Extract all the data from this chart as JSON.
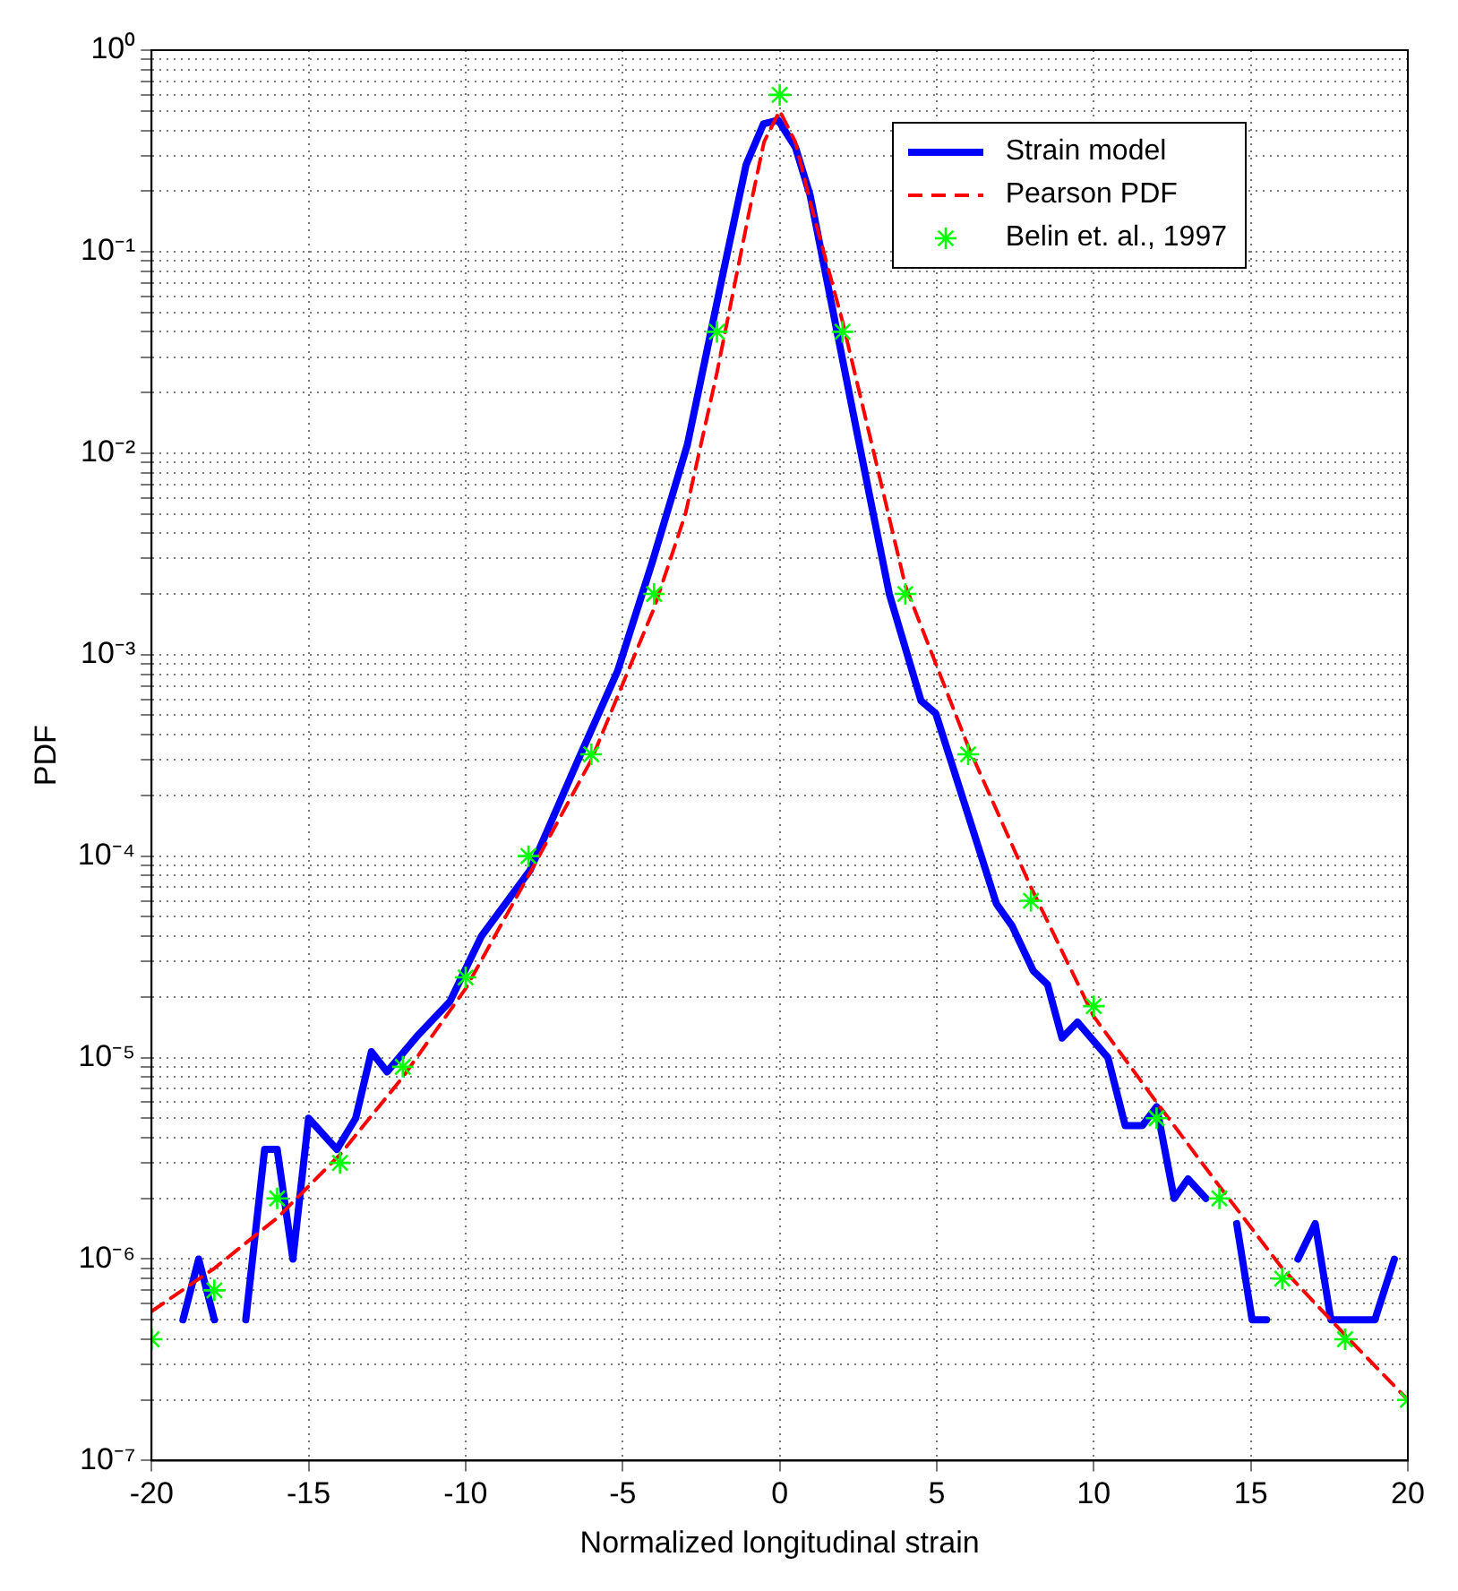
{
  "chart_data": {
    "type": "line",
    "xlabel": "Normalized longitudinal strain",
    "ylabel": "PDF",
    "log": "y",
    "grid": true,
    "legend": "top right",
    "xlim": [
      -20,
      20
    ],
    "xticks": [
      -20,
      -15,
      -10,
      -5,
      0,
      5,
      10,
      15,
      20
    ],
    "ylim": [
      1e-07,
      1
    ],
    "yticks": [
      {
        "value": 1e-07,
        "label": "10⁻⁷"
      },
      {
        "value": 1e-06,
        "label": "10⁻⁶"
      },
      {
        "value": 1e-05,
        "label": "10⁻⁵"
      },
      {
        "value": 0.0001,
        "label": "10⁻⁴"
      },
      {
        "value": 0.001,
        "label": "10⁻³"
      },
      {
        "value": 0.01,
        "label": "10⁻²"
      },
      {
        "value": 0.1,
        "label": "10⁻¹"
      },
      {
        "value": 1,
        "label": "10⁰"
      }
    ],
    "series": [
      {
        "name": "Strain model",
        "type": "line",
        "color": "#0000ff",
        "line_style": "solid",
        "marker": "none",
        "x": [
          -19,
          -18.5,
          -18,
          -17.5,
          -17,
          -16.4,
          -16,
          -15.5,
          -15,
          -14.1,
          -13.5,
          -13,
          -12.5,
          -11.5,
          -10.5,
          -9.5,
          -7.95,
          -6.46,
          -5.16,
          -4.05,
          -2.94,
          -1.82,
          -1.07,
          -0.52,
          -0.05,
          0.5,
          0.97,
          1.9,
          2.65,
          3.49,
          4.5,
          4.97,
          6,
          6.9,
          7.4,
          8.07,
          8.53,
          8.99,
          9.48,
          10.45,
          11,
          11.55,
          12,
          12.56,
          13,
          13.57,
          14,
          14.55,
          15.04,
          15.5,
          16,
          16.5,
          17.05,
          17.55,
          18.95,
          19.57
        ],
        "values": [
          5e-07,
          1e-06,
          5e-07,
          null,
          5e-07,
          3.5e-06,
          3.5e-06,
          1e-06,
          5e-06,
          3.5e-06,
          5e-06,
          1.07e-05,
          8.5e-06,
          1.3e-05,
          1.9e-05,
          4e-05,
          8.5e-05,
          0.00029,
          0.00083,
          0.0029,
          0.011,
          0.076,
          0.27,
          0.43,
          0.45,
          0.33,
          0.19,
          0.035,
          0.009,
          0.002,
          0.00059,
          0.00051,
          0.00016,
          5.8e-05,
          4.5e-05,
          2.7e-05,
          2.3e-05,
          1.25e-05,
          1.5e-05,
          1e-05,
          4.6e-06,
          4.6e-06,
          5.7e-06,
          2e-06,
          2.5e-06,
          2e-06,
          null,
          1.5e-06,
          5e-07,
          5e-07,
          null,
          1e-06,
          1.5e-06,
          5e-07,
          5e-07,
          1e-06
        ]
      },
      {
        "name": "Pearson PDF",
        "type": "line",
        "color": "#ff0000",
        "line_style": "dashed",
        "marker": "none",
        "x": [
          -20,
          -18,
          -16,
          -14,
          -12,
          -10,
          -8,
          -6,
          -4,
          -3,
          -2,
          -1,
          -0.5,
          0,
          0.5,
          1,
          2,
          3,
          4,
          6,
          8,
          10,
          12,
          14,
          16,
          18,
          20
        ],
        "values": [
          5.5e-07,
          9e-07,
          1.6e-06,
          3.3e-06,
          8e-06,
          2.2e-05,
          8e-05,
          0.0003,
          0.0017,
          0.005,
          0.025,
          0.15,
          0.35,
          0.5,
          0.35,
          0.17,
          0.045,
          0.01,
          0.0022,
          0.00035,
          7e-05,
          1.6e-05,
          6e-06,
          2.3e-06,
          9e-07,
          4.2e-07,
          2e-07
        ]
      },
      {
        "name": "Belin et. al., 1997",
        "type": "scatter",
        "color": "#00ff00",
        "marker": "cross",
        "x": [
          -20,
          -18,
          -16,
          -14,
          -12,
          -10,
          -8,
          -6,
          -4,
          -2,
          0,
          2,
          4,
          6,
          8,
          10,
          12,
          14,
          16,
          18,
          20
        ],
        "values": [
          4e-07,
          7e-07,
          2e-06,
          3e-06,
          9e-06,
          2.5e-05,
          0.0001,
          0.00032,
          0.002,
          0.04,
          0.6,
          0.04,
          0.002,
          0.00032,
          6e-05,
          1.8e-05,
          5e-06,
          2e-06,
          8e-07,
          4e-07,
          2e-07
        ]
      }
    ]
  }
}
